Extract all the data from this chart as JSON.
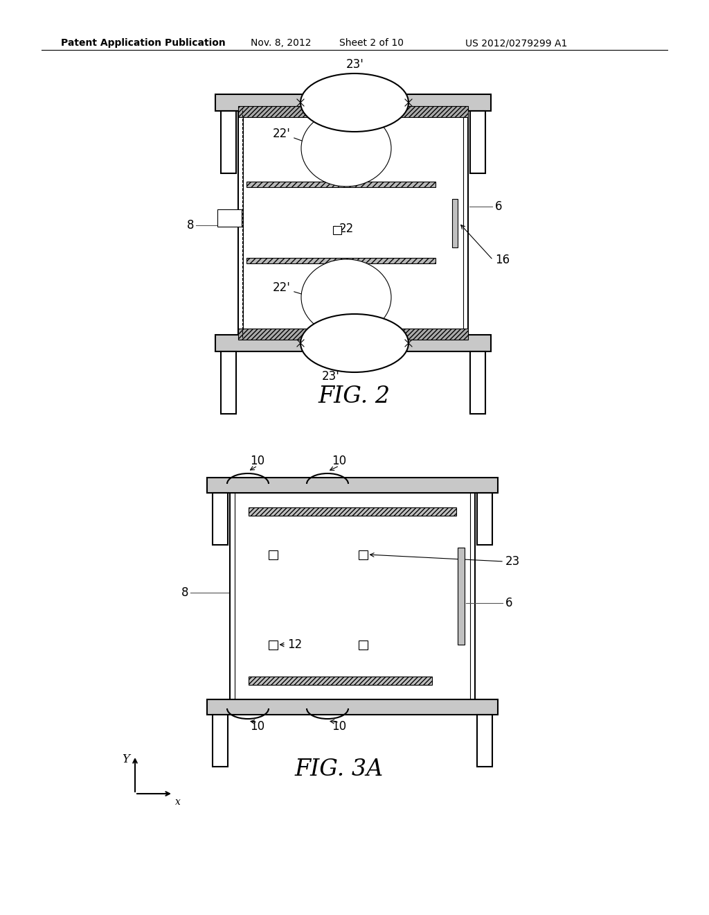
{
  "bg_color": "#ffffff",
  "line_color": "#000000",
  "header_text": "Patent Application Publication",
  "header_date": "Nov. 8, 2012",
  "header_sheet": "Sheet 2 of 10",
  "header_patent": "US 2012/0279299 A1",
  "fig2_label": "FIG. 2",
  "fig3a_label": "FIG. 3A",
  "lw_thin": 0.8,
  "lw_med": 1.5,
  "lw_thick": 2.5
}
